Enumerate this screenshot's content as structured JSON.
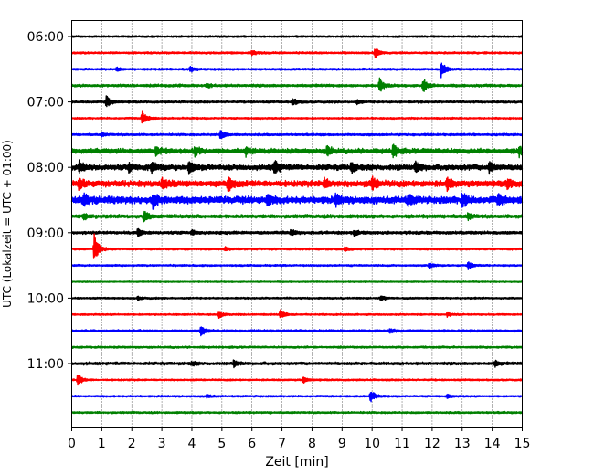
{
  "chart_data": {
    "type": "line",
    "xlabel": "Zeit  [min]",
    "ylabel": "UTC (Lokalzeit = UTC + 01:00)",
    "xlim": [
      0,
      15
    ],
    "x_ticks": [
      "0",
      "1",
      "2",
      "3",
      "4",
      "5",
      "6",
      "7",
      "8",
      "9",
      "10",
      "11",
      "12",
      "13",
      "14",
      "15"
    ],
    "y_tick_labels": [
      "06:00",
      "07:00",
      "08:00",
      "09:00",
      "10:00",
      "11:00"
    ],
    "y_tick_rows": [
      0,
      4,
      8,
      12,
      16,
      20
    ],
    "grid_x": true,
    "trace_colors": [
      "#000000",
      "#ff0000",
      "#0000ff",
      "#008000"
    ],
    "rows": [
      {
        "time": "06:00",
        "color": "#000000",
        "noise": 0.8,
        "events": []
      },
      {
        "time": "06:15",
        "color": "#ff0000",
        "noise": 0.9,
        "events": [
          {
            "t": 6.0,
            "a": 2.5
          },
          {
            "t": 10.1,
            "a": 5.5
          }
        ]
      },
      {
        "time": "06:30",
        "color": "#0000ff",
        "noise": 0.9,
        "events": [
          {
            "t": 1.5,
            "a": 2.0
          },
          {
            "t": 3.95,
            "a": 3.5
          },
          {
            "t": 12.3,
            "a": 10.0
          }
        ]
      },
      {
        "time": "06:45",
        "color": "#008000",
        "noise": 1.2,
        "events": [
          {
            "t": 10.25,
            "a": 8.0
          },
          {
            "t": 11.7,
            "a": 8.0
          },
          {
            "t": 4.5,
            "a": 2.0
          }
        ]
      },
      {
        "time": "07:00",
        "color": "#000000",
        "noise": 1.0,
        "events": [
          {
            "t": 1.15,
            "a": 7.0
          },
          {
            "t": 7.35,
            "a": 4.5
          },
          {
            "t": 9.5,
            "a": 2.0
          }
        ]
      },
      {
        "time": "07:15",
        "color": "#ff0000",
        "noise": 0.8,
        "events": [
          {
            "t": 2.35,
            "a": 8.0
          }
        ]
      },
      {
        "time": "07:30",
        "color": "#0000ff",
        "noise": 1.0,
        "events": [
          {
            "t": 4.95,
            "a": 5.0
          },
          {
            "t": 1.0,
            "a": 1.8
          }
        ]
      },
      {
        "time": "07:45",
        "color": "#008000",
        "noise": 2.2,
        "events": [
          {
            "t": 2.8,
            "a": 5.0
          },
          {
            "t": 4.1,
            "a": 5.0
          },
          {
            "t": 8.5,
            "a": 6.0
          },
          {
            "t": 10.7,
            "a": 6.5
          },
          {
            "t": 14.9,
            "a": 5.0
          },
          {
            "t": 5.8,
            "a": 4.0
          }
        ]
      },
      {
        "time": "08:00",
        "color": "#000000",
        "noise": 2.5,
        "events": [
          {
            "t": 0.25,
            "a": 6.0
          },
          {
            "t": 1.9,
            "a": 5.0
          },
          {
            "t": 2.65,
            "a": 6.0
          },
          {
            "t": 3.9,
            "a": 7.0
          },
          {
            "t": 6.75,
            "a": 8.0
          },
          {
            "t": 9.3,
            "a": 5.0
          },
          {
            "t": 11.45,
            "a": 6.0
          },
          {
            "t": 13.9,
            "a": 6.0
          }
        ]
      },
      {
        "time": "08:15",
        "color": "#ff0000",
        "noise": 2.8,
        "events": [
          {
            "t": 0.25,
            "a": 6.5
          },
          {
            "t": 3.0,
            "a": 5.0
          },
          {
            "t": 5.2,
            "a": 7.0
          },
          {
            "t": 8.4,
            "a": 5.5
          },
          {
            "t": 10.0,
            "a": 7.0
          },
          {
            "t": 12.5,
            "a": 6.0
          },
          {
            "t": 14.5,
            "a": 5.0
          }
        ]
      },
      {
        "time": "08:30",
        "color": "#0000ff",
        "noise": 3.2,
        "events": [
          {
            "t": 0.4,
            "a": 6.5
          },
          {
            "t": 2.7,
            "a": 8.0
          },
          {
            "t": 6.5,
            "a": 6.0
          },
          {
            "t": 8.8,
            "a": 6.0
          },
          {
            "t": 11.2,
            "a": 6.0
          },
          {
            "t": 13.0,
            "a": 8.0
          },
          {
            "t": 14.2,
            "a": 5.0
          }
        ]
      },
      {
        "time": "08:45",
        "color": "#008000",
        "noise": 1.6,
        "events": [
          {
            "t": 2.4,
            "a": 6.0
          },
          {
            "t": 0.4,
            "a": 3.0
          },
          {
            "t": 13.2,
            "a": 3.5
          }
        ]
      },
      {
        "time": "09:00",
        "color": "#000000",
        "noise": 1.3,
        "events": [
          {
            "t": 2.2,
            "a": 4.0
          },
          {
            "t": 7.3,
            "a": 3.0
          },
          {
            "t": 9.4,
            "a": 3.0
          },
          {
            "t": 4.0,
            "a": 2.5
          }
        ]
      },
      {
        "time": "09:15",
        "color": "#ff0000",
        "noise": 0.9,
        "events": [
          {
            "t": 0.75,
            "a": 16.0
          },
          {
            "t": 9.1,
            "a": 2.5
          },
          {
            "t": 5.1,
            "a": 2.0
          }
        ]
      },
      {
        "time": "09:30",
        "color": "#0000ff",
        "noise": 0.8,
        "events": [
          {
            "t": 13.2,
            "a": 4.0
          },
          {
            "t": 11.9,
            "a": 3.0
          }
        ]
      },
      {
        "time": "09:45",
        "color": "#008000",
        "noise": 0.6,
        "events": []
      },
      {
        "time": "10:00",
        "color": "#000000",
        "noise": 0.8,
        "events": [
          {
            "t": 10.3,
            "a": 3.0
          },
          {
            "t": 2.2,
            "a": 1.8
          }
        ]
      },
      {
        "time": "10:15",
        "color": "#ff0000",
        "noise": 0.8,
        "events": [
          {
            "t": 4.9,
            "a": 3.5
          },
          {
            "t": 6.95,
            "a": 4.5
          },
          {
            "t": 12.5,
            "a": 2.0
          }
        ]
      },
      {
        "time": "10:30",
        "color": "#0000ff",
        "noise": 1.0,
        "events": [
          {
            "t": 4.3,
            "a": 6.0
          },
          {
            "t": 10.6,
            "a": 2.5
          }
        ]
      },
      {
        "time": "10:45",
        "color": "#008000",
        "noise": 0.9,
        "events": []
      },
      {
        "time": "11:00",
        "color": "#000000",
        "noise": 1.3,
        "events": [
          {
            "t": 5.4,
            "a": 4.0
          },
          {
            "t": 14.1,
            "a": 3.0
          },
          {
            "t": 4.0,
            "a": 2.0
          }
        ]
      },
      {
        "time": "11:15",
        "color": "#ff0000",
        "noise": 0.8,
        "events": [
          {
            "t": 0.2,
            "a": 7.0
          },
          {
            "t": 7.7,
            "a": 3.5
          }
        ]
      },
      {
        "time": "11:30",
        "color": "#0000ff",
        "noise": 0.8,
        "events": [
          {
            "t": 9.95,
            "a": 7.0
          },
          {
            "t": 4.5,
            "a": 1.8
          },
          {
            "t": 12.5,
            "a": 1.8
          }
        ]
      },
      {
        "time": "11:45",
        "color": "#008000",
        "noise": 0.9,
        "events": []
      }
    ]
  }
}
